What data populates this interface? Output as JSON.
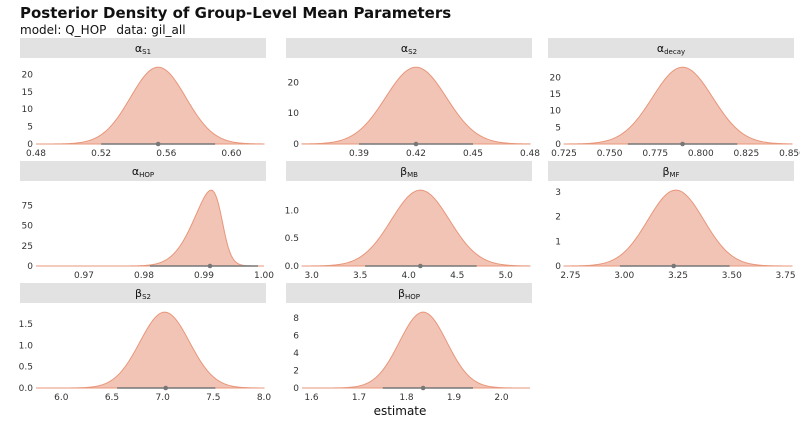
{
  "title": "Posterior Density of Group-Level Mean Parameters",
  "subtitle": {
    "model": "model: Q_HOP",
    "data": "data: gil_all"
  },
  "xlabel": "estimate",
  "colors": {
    "fill": "#f2c4b5",
    "line": "#e8967a",
    "interval": "#777777",
    "strip": "#e2e2e2"
  },
  "chart_data": [
    {
      "type": "area",
      "symbol": "α",
      "sub": "S1",
      "mean": 0.555,
      "sd": 0.017,
      "skew": 0,
      "xlim": [
        0.48,
        0.62
      ],
      "xticks": [
        "0.48",
        "0.52",
        "0.56",
        "0.60"
      ],
      "yticks": [
        "0",
        "5",
        "10",
        "15",
        "20"
      ],
      "ymax": 23,
      "interval": [
        0.52,
        0.59
      ],
      "point": 0.555
    },
    {
      "type": "area",
      "symbol": "α",
      "sub": "S2",
      "mean": 0.42,
      "sd": 0.016,
      "skew": 0,
      "xlim": [
        0.36,
        0.48
      ],
      "xticks": [
        "0.39",
        "0.42",
        "0.45",
        "0.48"
      ],
      "yticks": [
        "0",
        "10",
        "20"
      ],
      "ymax": 26,
      "interval": [
        0.39,
        0.45
      ],
      "point": 0.42
    },
    {
      "type": "area",
      "symbol": "α",
      "sub": "decay",
      "mean": 0.79,
      "sd": 0.0165,
      "skew": 0,
      "xlim": [
        0.725,
        0.85
      ],
      "xticks": [
        "0.725",
        "0.750",
        "0.775",
        "0.800",
        "0.825",
        "0.850"
      ],
      "yticks": [
        "0",
        "5",
        "10",
        "15",
        "20"
      ],
      "ymax": 24,
      "interval": [
        0.76,
        0.82
      ],
      "point": 0.79
    },
    {
      "type": "area",
      "symbol": "α",
      "sub": "HOP",
      "mean": 0.993,
      "sd": 0.004,
      "skew": -1,
      "xlim": [
        0.962,
        1.0
      ],
      "xticks": [
        "0.97",
        "0.98",
        "0.99",
        "1.00"
      ],
      "yticks": [
        "0",
        "25",
        "50",
        "75"
      ],
      "ymax": 98,
      "interval": [
        0.981,
        0.999
      ],
      "point": 0.991
    },
    {
      "type": "area",
      "symbol": "β",
      "sub": "MB",
      "mean": 4.12,
      "sd": 0.3,
      "skew": 0,
      "xlim": [
        2.9,
        5.25
      ],
      "xticks": [
        "3.0",
        "3.5",
        "4.0",
        "4.5",
        "5.0"
      ],
      "yticks": [
        "0.0",
        "0.5",
        "1.0"
      ],
      "ymax": 1.42,
      "interval": [
        3.55,
        4.7
      ],
      "point": 4.12
    },
    {
      "type": "area",
      "symbol": "β",
      "sub": "MF",
      "mean": 3.24,
      "sd": 0.13,
      "skew": 0,
      "xlim": [
        2.72,
        3.78
      ],
      "xticks": [
        "2.75",
        "3.00",
        "3.25",
        "3.50",
        "3.75"
      ],
      "yticks": [
        "0",
        "1",
        "2",
        "3"
      ],
      "ymax": 3.2,
      "interval": [
        2.98,
        3.49
      ],
      "point": 3.23
    },
    {
      "type": "area",
      "symbol": "β",
      "sub": "S2",
      "mean": 7.02,
      "sd": 0.245,
      "skew": 0,
      "xlim": [
        5.75,
        8.0
      ],
      "xticks": [
        "6.0",
        "6.5",
        "7.0",
        "7.5",
        "8.0"
      ],
      "yticks": [
        "0.0",
        "0.5",
        "1.0",
        "1.5"
      ],
      "ymax": 1.85,
      "interval": [
        6.55,
        7.52
      ],
      "point": 7.03
    },
    {
      "type": "area",
      "symbol": "β",
      "sub": "HOP",
      "mean": 1.835,
      "sd": 0.05,
      "skew": 0,
      "xlim": [
        1.58,
        2.06
      ],
      "xticks": [
        "1.6",
        "1.7",
        "1.8",
        "1.9",
        "2.0"
      ],
      "yticks": [
        "0",
        "2",
        "4",
        "6",
        "8"
      ],
      "ymax": 9,
      "interval": [
        1.75,
        1.94
      ],
      "point": 1.835
    }
  ]
}
